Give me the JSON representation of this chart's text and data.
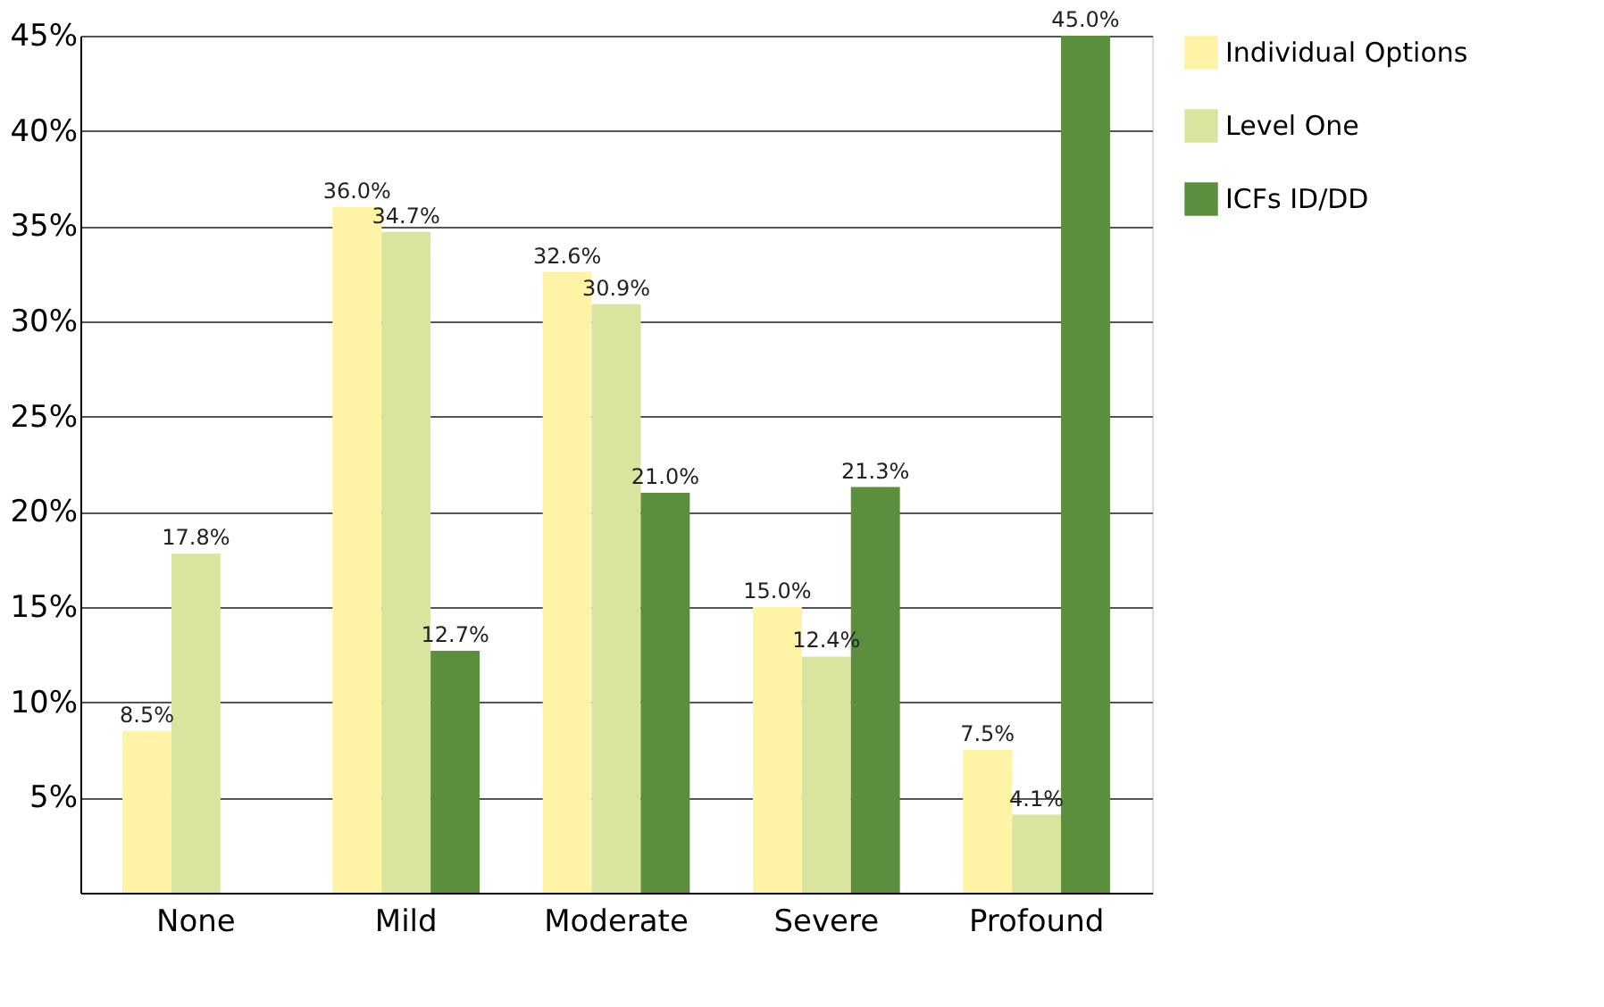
{
  "chart_data": {
    "type": "bar",
    "categories": [
      "None",
      "Mild",
      "Moderate",
      "Severe",
      "Profound"
    ],
    "series": [
      {
        "name": "Individual Options",
        "color": "#fff3a6",
        "values": [
          8.5,
          36.0,
          32.6,
          15.0,
          7.5
        ],
        "value_labels": [
          "8.5%",
          "36.0%",
          "32.6%",
          "15.0%",
          "7.5%"
        ]
      },
      {
        "name": "Level One",
        "color": "#d9e59e",
        "values": [
          17.8,
          34.7,
          30.9,
          12.4,
          4.1
        ],
        "value_labels": [
          "17.8%",
          "34.7%",
          "30.9%",
          "12.4%",
          "4.1%"
        ]
      },
      {
        "name": "ICFs ID/DD",
        "color": "#5b8f3d",
        "values": [
          null,
          12.7,
          21.0,
          21.3,
          45.0
        ],
        "value_labels": [
          null,
          "12.7%",
          "21.0%",
          "21.3%",
          "45.0%"
        ]
      }
    ],
    "ylim": [
      0,
      45
    ],
    "yticks": [
      {
        "value": 5,
        "label": "5%"
      },
      {
        "value": 10,
        "label": "10%"
      },
      {
        "value": 15,
        "label": "15%"
      },
      {
        "value": 20,
        "label": "20%"
      },
      {
        "value": 25,
        "label": "25%"
      },
      {
        "value": 30,
        "label": "30%"
      },
      {
        "value": 35,
        "label": "35%"
      },
      {
        "value": 40,
        "label": "40%"
      },
      {
        "value": 45,
        "label": "45%"
      }
    ],
    "grid": "y",
    "legend": "right"
  }
}
